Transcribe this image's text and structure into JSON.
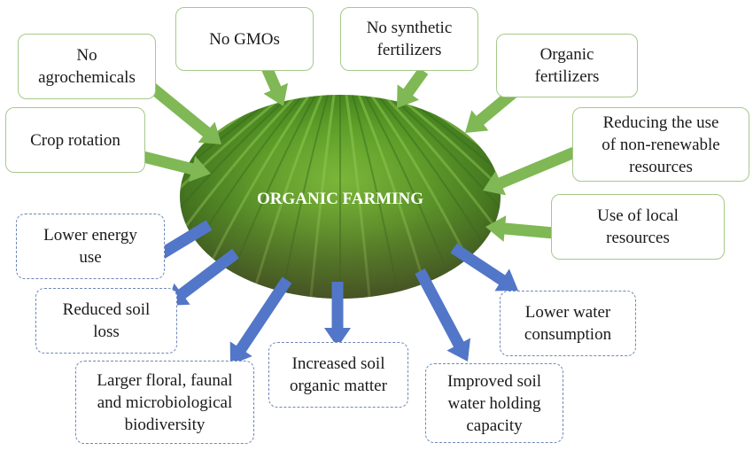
{
  "title": "ORGANIC FARMING",
  "colors": {
    "input_arrow": "#7fb854",
    "output_arrow": "#5276c8",
    "input_border": "#a6c98a",
    "output_border": "#6f87b7"
  },
  "inputs": {
    "no_agrochemicals": "No\nagrochemicals",
    "no_gmos": "No GMOs",
    "no_synthetic_fertilizers": "No synthetic\nfertilizers",
    "organic_fertilizers": "Organic\nfertilizers",
    "crop_rotation": "Crop rotation",
    "reducing_non_renewable": "Reducing the use\nof non-renewable\nresources",
    "use_of_local_resources": "Use of local\nresources"
  },
  "outputs": {
    "lower_energy_use": "Lower energy\nuse",
    "reduced_soil_loss": "Reduced soil\nloss",
    "larger_biodiversity": "Larger floral, faunal\nand microbiological\nbiodiversity",
    "increased_soil_organic_matter": "Increased soil\norganic matter",
    "improved_water_holding": "Improved soil\nwater holding\ncapacity",
    "lower_water_consumption": "Lower water\nconsumption"
  }
}
